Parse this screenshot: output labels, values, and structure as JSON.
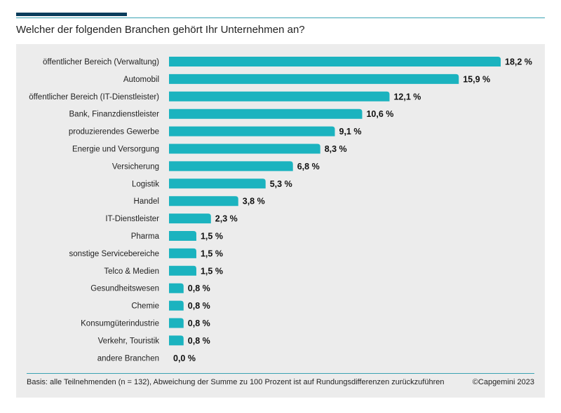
{
  "title": "Welcher der folgenden Branchen gehört Ihr Unternehmen an?",
  "footnote": "Basis: alle Teilnehmenden (n = 132), Abweichung der Summe zu 100 Prozent ist auf Rundungsdifferenzen zurückzuführen",
  "copyright": "©Capgemini 2023",
  "colors": {
    "bar": "#1bb3bf",
    "accent": "#0a3d5c",
    "rule": "#3aa3b3",
    "panel": "#ececec"
  },
  "chart_data": {
    "type": "bar",
    "orientation": "horizontal",
    "title": "Welcher der folgenden Branchen gehört Ihr Unternehmen an?",
    "xlabel": "",
    "ylabel": "",
    "xlim": [
      0,
      18.2
    ],
    "unit": "%",
    "grid": false,
    "categories": [
      "öffentlicher Bereich (Verwaltung)",
      "Automobil",
      "öffentlicher Bereich (IT-Dienstleister)",
      "Bank, Finanzdienstleister",
      "produzierendes Gewerbe",
      "Energie und Versorgung",
      "Versicherung",
      "Logistik",
      "Handel",
      "IT-Dienstleister",
      "Pharma",
      "sonstige Servicebereiche",
      "Telco & Medien",
      "Gesundheitswesen",
      "Chemie",
      "Konsumgüterindustrie",
      "Verkehr, Touristik",
      "andere Branchen"
    ],
    "values": [
      18.2,
      15.9,
      12.1,
      10.6,
      9.1,
      8.3,
      6.8,
      5.3,
      3.8,
      2.3,
      1.5,
      1.5,
      1.5,
      0.8,
      0.8,
      0.8,
      0.8,
      0.0
    ],
    "value_labels": [
      "18,2 %",
      "15,9 %",
      "12,1 %",
      "10,6 %",
      "9,1 %",
      "8,3 %",
      "6,8 %",
      "5,3 %",
      "3,8 %",
      "2,3 %",
      "1,5 %",
      "1,5 %",
      "1,5 %",
      "0,8 %",
      "0,8 %",
      "0,8 %",
      "0,8 %",
      "0,0 %"
    ]
  }
}
